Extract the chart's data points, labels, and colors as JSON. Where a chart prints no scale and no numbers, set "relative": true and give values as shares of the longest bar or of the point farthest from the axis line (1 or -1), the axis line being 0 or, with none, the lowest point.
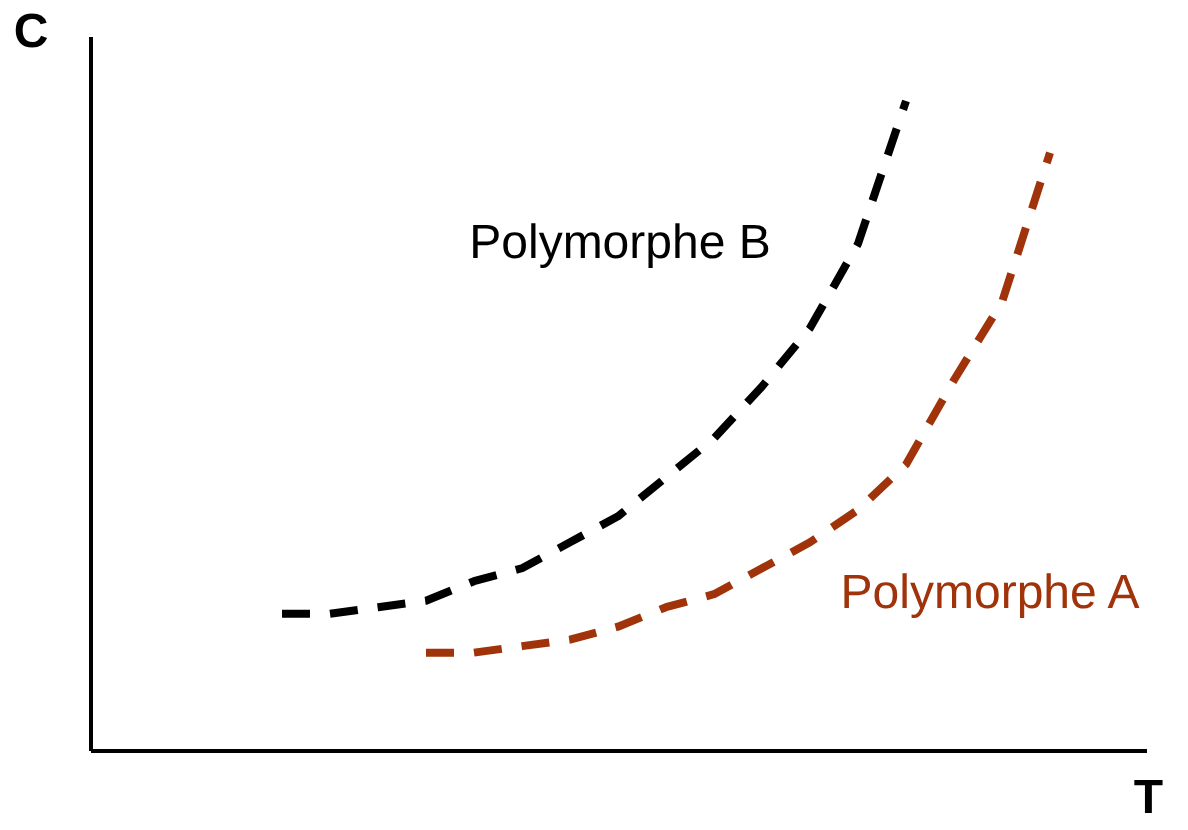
{
  "chart_data": {
    "type": "line",
    "relative": true,
    "xlabel": "T",
    "ylabel": "C",
    "line_style": "dashed",
    "categories": [
      null,
      null,
      null,
      null,
      null,
      null,
      null,
      null,
      null,
      null,
      null,
      null,
      null,
      null,
      null,
      null,
      null,
      null,
      null,
      null,
      null,
      null,
      null
    ],
    "series": [
      {
        "name": "Polymorphe B",
        "color": "#000000",
        "values": [
          null,
          null,
          null,
          null,
          0.21,
          0.21,
          0.22,
          0.23,
          0.26,
          0.28,
          0.32,
          0.36,
          0.42,
          0.48,
          0.56,
          0.65,
          0.78,
          1.0,
          null,
          null,
          null,
          null,
          null
        ]
      },
      {
        "name": "Polymorphe A",
        "color": "#a0330a",
        "values": [
          null,
          null,
          null,
          null,
          null,
          null,
          null,
          0.15,
          0.15,
          0.16,
          0.17,
          0.19,
          0.22,
          0.24,
          0.28,
          0.32,
          0.37,
          0.44,
          0.57,
          0.69,
          0.92,
          null,
          null
        ]
      }
    ]
  }
}
